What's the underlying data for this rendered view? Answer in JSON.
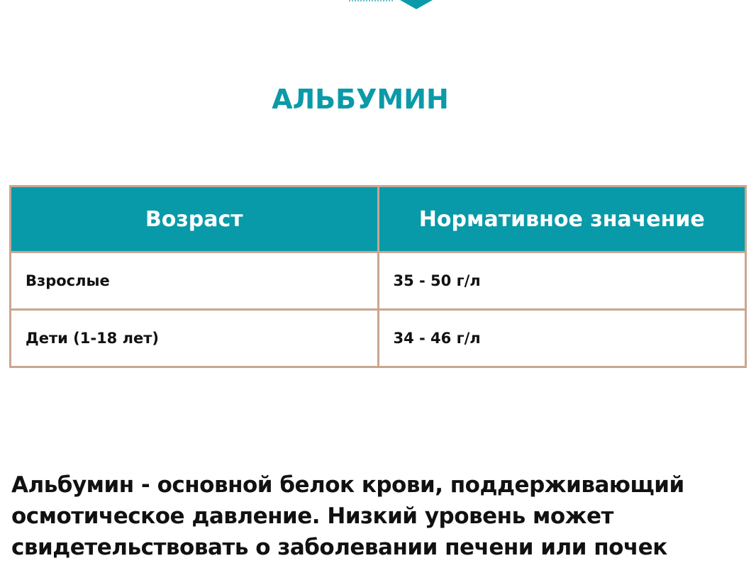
{
  "brand": {
    "accent": "#0a9aa8",
    "border": "#c9a690"
  },
  "title": "АЛЬБУМИН",
  "table": {
    "headers": [
      "Возраст",
      "Нормативное значение"
    ],
    "rows": [
      [
        "Взрослые",
        "35 - 50 г/л"
      ],
      [
        "Дети (1-18 лет)",
        "34 - 46 г/л"
      ]
    ]
  },
  "description": "Альбумин - основной белок крови, поддерживающий осмотическое давление. Низкий уровень может свидетельствовать о заболевании печени или почек"
}
